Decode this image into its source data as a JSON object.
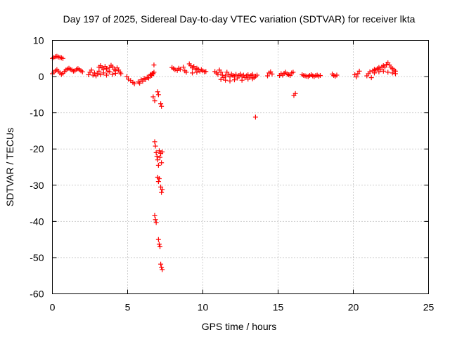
{
  "chart_data": {
    "type": "scatter",
    "title": "Day 197 of 2025, Sidereal Day-to-day VTEC variation (SDTVAR) for receiver lkta",
    "xlabel": "GPS time / hours",
    "ylabel": "SDTVAR / TECUs",
    "xlim": [
      0,
      25
    ],
    "ylim": [
      -60,
      10
    ],
    "grid": true,
    "x_ticks": [
      0,
      5,
      10,
      15,
      20,
      25
    ],
    "x_tick_labels": [
      "0",
      "5",
      "10",
      "15",
      "20",
      "25"
    ],
    "y_ticks": [
      -60,
      -50,
      -40,
      -30,
      -20,
      -10,
      0,
      10
    ],
    "y_tick_labels": [
      "-60",
      "-50",
      "-40",
      "-30",
      "-20",
      "-10",
      "0",
      "10"
    ],
    "marker": "+",
    "series": [
      {
        "name": "SDTVAR",
        "color": "#ff0000",
        "points": [
          [
            0.0,
            5.0
          ],
          [
            0.1,
            5.3
          ],
          [
            0.2,
            5.5
          ],
          [
            0.3,
            5.6
          ],
          [
            0.4,
            5.4
          ],
          [
            0.5,
            5.3
          ],
          [
            0.6,
            5.2
          ],
          [
            0.7,
            5.0
          ],
          [
            0.0,
            0.8
          ],
          [
            0.1,
            1.2
          ],
          [
            0.2,
            1.6
          ],
          [
            0.3,
            1.9
          ],
          [
            0.4,
            1.5
          ],
          [
            0.5,
            1.0
          ],
          [
            0.6,
            0.6
          ],
          [
            0.7,
            0.9
          ],
          [
            0.8,
            1.4
          ],
          [
            0.9,
            1.8
          ],
          [
            1.0,
            2.1
          ],
          [
            1.1,
            2.3
          ],
          [
            1.2,
            2.0
          ],
          [
            1.3,
            1.8
          ],
          [
            1.4,
            1.5
          ],
          [
            1.5,
            1.6
          ],
          [
            1.6,
            2.0
          ],
          [
            1.7,
            2.2
          ],
          [
            1.8,
            1.9
          ],
          [
            1.9,
            1.6
          ],
          [
            2.0,
            1.3
          ],
          [
            2.4,
            0.5
          ],
          [
            2.5,
            1.2
          ],
          [
            2.6,
            1.8
          ],
          [
            2.7,
            0.4
          ],
          [
            2.8,
            1.0
          ],
          [
            2.9,
            0.2
          ],
          [
            3.0,
            0.8
          ],
          [
            3.1,
            1.5
          ],
          [
            3.1,
            2.6
          ],
          [
            3.2,
            3.0
          ],
          [
            3.3,
            2.4
          ],
          [
            3.4,
            2.0
          ],
          [
            3.5,
            2.8
          ],
          [
            3.6,
            2.2
          ],
          [
            3.7,
            1.5
          ],
          [
            3.8,
            2.5
          ],
          [
            3.9,
            3.1
          ],
          [
            4.0,
            2.7
          ],
          [
            4.1,
            2.0
          ],
          [
            4.2,
            1.6
          ],
          [
            4.3,
            2.4
          ],
          [
            4.4,
            1.8
          ],
          [
            4.5,
            1.2
          ],
          [
            4.55,
            0.8
          ],
          [
            3.2,
            0.5
          ],
          [
            3.4,
            1.0
          ],
          [
            3.6,
            0.4
          ],
          [
            3.8,
            1.3
          ],
          [
            4.0,
            0.6
          ],
          [
            4.2,
            0.9
          ],
          [
            4.95,
            0.0
          ],
          [
            5.05,
            -0.7
          ],
          [
            5.2,
            -1.1
          ],
          [
            5.35,
            -1.6
          ],
          [
            5.45,
            -2.0
          ],
          [
            5.7,
            -1.5
          ],
          [
            5.8,
            -1.8
          ],
          [
            5.9,
            -0.9
          ],
          [
            6.0,
            -1.3
          ],
          [
            6.1,
            -0.5
          ],
          [
            6.2,
            -0.8
          ],
          [
            6.3,
            -0.2
          ],
          [
            6.4,
            -0.4
          ],
          [
            6.5,
            0.4
          ],
          [
            6.55,
            0.6
          ],
          [
            6.6,
            0.3
          ],
          [
            6.65,
            0.9
          ],
          [
            6.7,
            0.8
          ],
          [
            6.75,
            1.2
          ],
          [
            6.75,
            3.2
          ],
          [
            6.7,
            -5.6
          ],
          [
            6.8,
            -6.7
          ],
          [
            7.0,
            -4.2
          ],
          [
            7.05,
            -5.0
          ],
          [
            7.2,
            -7.5
          ],
          [
            7.25,
            -8.2
          ],
          [
            6.8,
            -18.0
          ],
          [
            6.85,
            -19.2
          ],
          [
            6.9,
            -21.0
          ],
          [
            6.95,
            -22.0
          ],
          [
            7.0,
            -23.0
          ],
          [
            7.05,
            -24.5
          ],
          [
            7.1,
            -20.5
          ],
          [
            7.15,
            -22.3
          ],
          [
            7.2,
            -21.2
          ],
          [
            7.25,
            -23.8
          ],
          [
            7.3,
            -20.8
          ],
          [
            7.0,
            -27.8
          ],
          [
            7.05,
            -29.0
          ],
          [
            7.1,
            -28.2
          ],
          [
            7.2,
            -30.5
          ],
          [
            7.25,
            -32.0
          ],
          [
            7.3,
            -31.2
          ],
          [
            6.8,
            -38.3
          ],
          [
            6.85,
            -39.5
          ],
          [
            6.9,
            -40.3
          ],
          [
            7.05,
            -45.0
          ],
          [
            7.1,
            -46.3
          ],
          [
            7.15,
            -47.0
          ],
          [
            7.2,
            -51.8
          ],
          [
            7.25,
            -52.7
          ],
          [
            7.3,
            -53.3
          ],
          [
            7.95,
            2.5
          ],
          [
            8.05,
            2.2
          ],
          [
            8.15,
            1.9
          ],
          [
            8.3,
            1.7
          ],
          [
            8.4,
            2.3
          ],
          [
            8.5,
            2.0
          ],
          [
            8.7,
            2.6
          ],
          [
            8.8,
            1.6
          ],
          [
            8.9,
            1.2
          ],
          [
            9.1,
            3.5
          ],
          [
            9.2,
            3.0
          ],
          [
            9.3,
            2.4
          ],
          [
            9.4,
            2.8
          ],
          [
            9.5,
            1.9
          ],
          [
            9.6,
            2.3
          ],
          [
            9.7,
            2.0
          ],
          [
            9.8,
            1.5
          ],
          [
            9.9,
            1.9
          ],
          [
            10.0,
            1.6
          ],
          [
            10.1,
            1.3
          ],
          [
            10.2,
            1.4
          ],
          [
            9.3,
            1.0
          ],
          [
            9.6,
            1.2
          ],
          [
            10.8,
            1.4
          ],
          [
            10.9,
            1.0
          ],
          [
            11.0,
            0.6
          ],
          [
            11.1,
            1.8
          ],
          [
            11.2,
            1.2
          ],
          [
            11.3,
            0.4
          ],
          [
            11.4,
            -0.3
          ],
          [
            11.5,
            0.2
          ],
          [
            11.6,
            1.2
          ],
          [
            11.7,
            0.6
          ],
          [
            11.8,
            -0.1
          ],
          [
            11.9,
            0.7
          ],
          [
            12.0,
            0.3
          ],
          [
            12.1,
            0.1
          ],
          [
            12.2,
            0.6
          ],
          [
            12.3,
            -0.4
          ],
          [
            12.4,
            0.3
          ],
          [
            12.5,
            0.7
          ],
          [
            12.6,
            -0.1
          ],
          [
            12.7,
            0.4
          ],
          [
            12.8,
            -0.3
          ],
          [
            12.9,
            0.2
          ],
          [
            13.0,
            0.5
          ],
          [
            13.1,
            -0.2
          ],
          [
            13.2,
            0.3
          ],
          [
            13.3,
            0.6
          ],
          [
            13.4,
            -0.3
          ],
          [
            13.5,
            0.1
          ],
          [
            13.6,
            0.4
          ],
          [
            11.2,
            -0.8
          ],
          [
            11.5,
            -1.0
          ],
          [
            11.8,
            -1.2
          ],
          [
            12.1,
            -0.9
          ],
          [
            12.6,
            -1.0
          ],
          [
            13.0,
            -0.7
          ],
          [
            13.3,
            -0.6
          ],
          [
            13.5,
            -11.2
          ],
          [
            14.3,
            0.2
          ],
          [
            14.4,
            1.0
          ],
          [
            14.5,
            1.3
          ],
          [
            14.6,
            0.7
          ],
          [
            15.1,
            0.3
          ],
          [
            15.2,
            0.8
          ],
          [
            15.3,
            0.4
          ],
          [
            15.4,
            0.9
          ],
          [
            15.5,
            1.2
          ],
          [
            15.6,
            0.7
          ],
          [
            15.7,
            0.5
          ],
          [
            15.8,
            0.3
          ],
          [
            15.9,
            1.0
          ],
          [
            16.0,
            1.2
          ],
          [
            16.05,
            -5.2
          ],
          [
            16.15,
            -4.7
          ],
          [
            16.6,
            0.5
          ],
          [
            16.7,
            0.3
          ],
          [
            16.8,
            0.2
          ],
          [
            16.9,
            0.1
          ],
          [
            17.0,
            0.0
          ],
          [
            17.1,
            0.3
          ],
          [
            17.2,
            0.5
          ],
          [
            17.3,
            0.2
          ],
          [
            17.4,
            0.0
          ],
          [
            17.5,
            0.3
          ],
          [
            17.6,
            0.4
          ],
          [
            17.7,
            0.1
          ],
          [
            17.8,
            0.3
          ],
          [
            18.6,
            0.7
          ],
          [
            18.7,
            0.3
          ],
          [
            18.8,
            0.1
          ],
          [
            18.9,
            0.4
          ],
          [
            20.1,
            0.5
          ],
          [
            20.2,
            -0.1
          ],
          [
            20.3,
            0.8
          ],
          [
            20.4,
            1.5
          ],
          [
            20.9,
            0.2
          ],
          [
            21.0,
            0.8
          ],
          [
            21.1,
            1.3
          ],
          [
            21.2,
            -0.3
          ],
          [
            21.3,
            1.6
          ],
          [
            21.4,
            2.0
          ],
          [
            21.5,
            1.8
          ],
          [
            21.6,
            2.2
          ],
          [
            21.7,
            2.5
          ],
          [
            21.8,
            2.0
          ],
          [
            21.9,
            2.7
          ],
          [
            22.0,
            3.0
          ],
          [
            22.1,
            2.6
          ],
          [
            22.2,
            3.4
          ],
          [
            22.3,
            3.8
          ],
          [
            22.4,
            3.2
          ],
          [
            22.5,
            2.6
          ],
          [
            22.6,
            2.2
          ],
          [
            22.7,
            1.8
          ],
          [
            22.8,
            1.5
          ],
          [
            21.4,
            1.0
          ],
          [
            21.7,
            1.3
          ],
          [
            22.0,
            1.5
          ],
          [
            22.3,
            1.2
          ],
          [
            22.6,
            1.0
          ],
          [
            22.8,
            0.8
          ]
        ]
      }
    ]
  }
}
